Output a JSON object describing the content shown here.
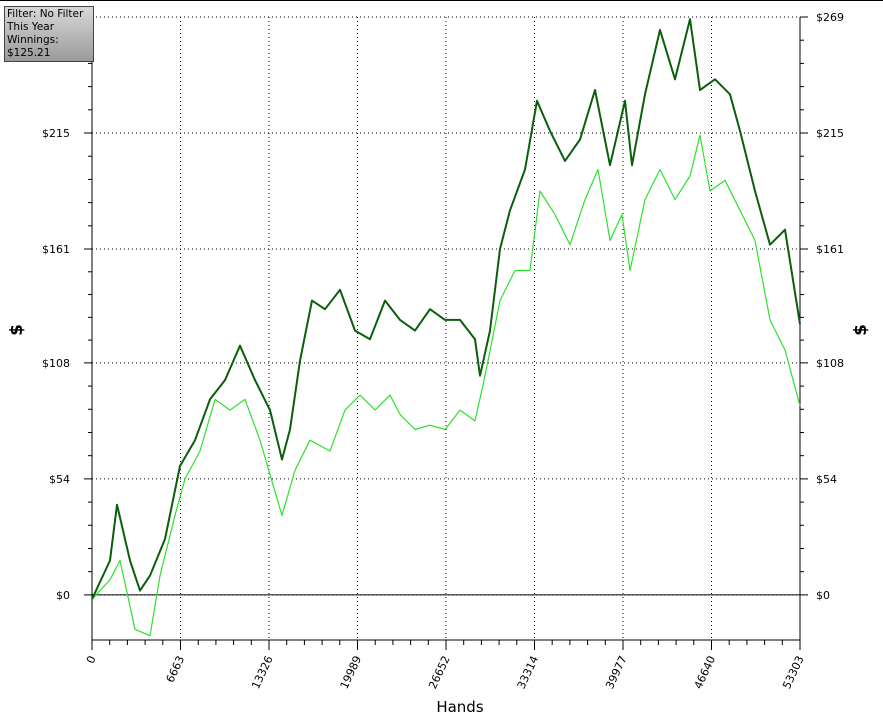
{
  "info": {
    "filter": "Filter: No Filter",
    "period": "This Year",
    "winnings": "Winnings: $125.21"
  },
  "chart_data": {
    "type": "line",
    "x_label": "Hands",
    "y_label": "$",
    "grid": true,
    "xlim": [
      0,
      53303
    ],
    "xticks": [
      0,
      6663,
      13326,
      19989,
      26652,
      33314,
      39977,
      46640,
      53303
    ],
    "ylim": [
      -21,
      269
    ],
    "yticks": [
      {
        "value": 0,
        "label": "$0"
      },
      {
        "value": 54,
        "label": "$54"
      },
      {
        "value": 108,
        "label": "$108"
      },
      {
        "value": 161,
        "label": "$161"
      },
      {
        "value": 215,
        "label": "$215"
      },
      {
        "value": 269,
        "label": "$269"
      }
    ],
    "series": [
      {
        "color": "#0b5e0b",
        "x": [
          0,
          1355,
          1882,
          2861,
          3614,
          4367,
          5496,
          6626,
          7755,
          8885,
          10014,
          11143,
          12272,
          13402,
          14305,
          14908,
          15661,
          16564,
          17543,
          18672,
          19801,
          20931,
          22060,
          23189,
          24319,
          25448,
          26577,
          27707,
          28836,
          29212,
          29966,
          30719,
          31472,
          32601,
          33505,
          34484,
          35613,
          36742,
          37872,
          39001,
          40130,
          40657,
          41636,
          42765,
          43895,
          45024,
          45777,
          46906,
          48036,
          48789,
          49918,
          51048,
          52177,
          53303
        ],
        "values": [
          -2,
          16,
          42,
          16,
          2,
          9,
          26,
          60,
          72,
          91,
          100,
          116,
          100,
          86,
          63,
          77,
          109,
          137,
          133,
          142,
          123,
          119,
          137,
          128,
          123,
          133,
          128,
          128,
          119,
          102,
          123,
          161,
          179,
          198,
          230,
          216,
          202,
          212,
          235,
          200,
          230,
          200,
          233,
          263,
          240,
          268,
          235,
          240,
          233,
          216,
          188,
          163,
          170,
          126
        ]
      },
      {
        "color": "#2fe02f",
        "x": [
          0,
          1355,
          2108,
          3237,
          4367,
          5120,
          6249,
          7002,
          8131,
          9261,
          10390,
          11519,
          12649,
          13402,
          14305,
          15284,
          16413,
          17919,
          19049,
          20178,
          21307,
          22436,
          23189,
          24319,
          25448,
          26577,
          27707,
          28836,
          29589,
          30719,
          31848,
          32977,
          33730,
          34860,
          35989,
          37118,
          38097,
          39001,
          39904,
          40507,
          41636,
          42765,
          43895,
          45024,
          45777,
          46530,
          47660,
          48789,
          49918,
          51048,
          52177,
          53303
        ],
        "values": [
          -2,
          7,
          16,
          -16,
          -19,
          9,
          37,
          54,
          67,
          91,
          86,
          91,
          72,
          56,
          37,
          58,
          72,
          67,
          86,
          93,
          86,
          93,
          84,
          77,
          79,
          77,
          86,
          81,
          102,
          137,
          151,
          151,
          188,
          177,
          163,
          184,
          198,
          165,
          177,
          151,
          184,
          198,
          184,
          195,
          214,
          188,
          193,
          179,
          165,
          128,
          114,
          88
        ]
      }
    ]
  }
}
